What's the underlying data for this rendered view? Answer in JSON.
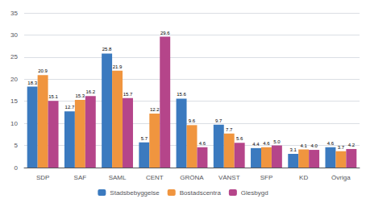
{
  "chart_data": {
    "type": "bar",
    "categories": [
      "SDP",
      "SAF",
      "SAML",
      "CENT",
      "GRÖNA",
      "VÄNST",
      "SFP",
      "KD",
      "Övriga"
    ],
    "series": [
      {
        "name": "Stadsbebyggelse",
        "color": "#3b7abf",
        "values": [
          18.3,
          12.7,
          25.8,
          5.7,
          15.6,
          9.7,
          4.4,
          3.1,
          4.6
        ]
      },
      {
        "name": "Bostadscentra",
        "color": "#f0953f",
        "values": [
          20.9,
          15.3,
          21.9,
          12.2,
          9.6,
          7.7,
          4.6,
          4.1,
          3.7
        ]
      },
      {
        "name": "Glesbygd",
        "color": "#b5458a",
        "values": [
          15.1,
          16.2,
          15.7,
          29.6,
          4.6,
          5.6,
          5.0,
          4.0,
          4.2
        ],
        "value_labels": [
          "15.1",
          "16.2",
          "15.7",
          "29.6",
          "4.6",
          "5.6",
          "5.0",
          "4.0",
          "4.2"
        ]
      }
    ],
    "ylim": [
      0,
      35
    ],
    "yticks": [
      0,
      5,
      10,
      15,
      20,
      25,
      30,
      35
    ],
    "grid": true,
    "legend": "bottom",
    "data_labels": true
  }
}
